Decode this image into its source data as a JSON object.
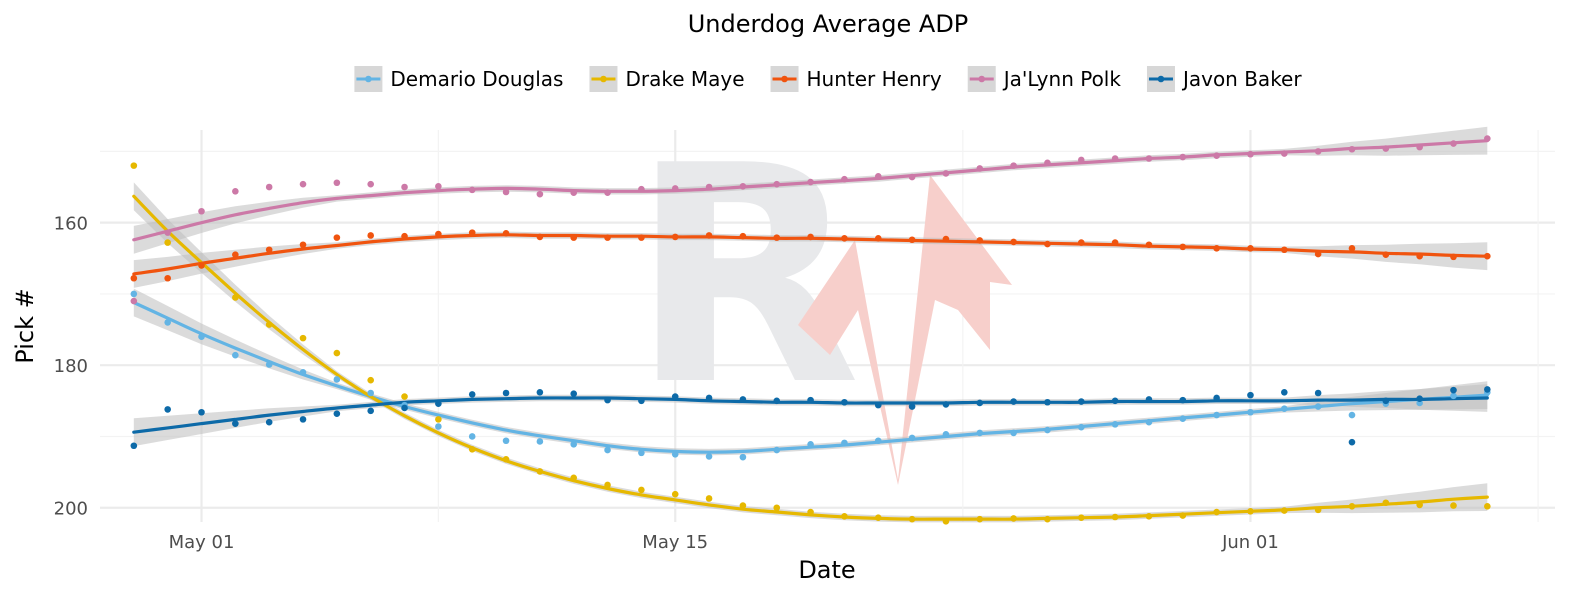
{
  "chart_data": {
    "type": "scatter",
    "title": "Underdog Average ADP",
    "xlabel": "Date",
    "ylabel": "Pick #",
    "x_axis": {
      "type": "date",
      "range": [
        "2024-04-28",
        "2024-06-10"
      ],
      "ticks": [
        {
          "date": "2024-05-01",
          "label": "May 01"
        },
        {
          "date": "2024-05-15",
          "label": "May 15"
        },
        {
          "date": "2024-06-01",
          "label": "Jun 01"
        }
      ]
    },
    "y_axis": {
      "reversed": true,
      "range": [
        147,
        202
      ],
      "ticks": [
        160,
        180,
        200
      ]
    },
    "grid": true,
    "legend_position": "top",
    "smoothing": "loess trend with confidence band",
    "watermark": "RV",
    "colors": {
      "band": "#bdbdbd",
      "watermark_letter": "#e8e9eb",
      "watermark_arrow": "#f7cfcb"
    },
    "dates": [
      "2024-04-29",
      "2024-04-30",
      "2024-05-01",
      "2024-05-02",
      "2024-05-03",
      "2024-05-04",
      "2024-05-05",
      "2024-05-06",
      "2024-05-07",
      "2024-05-08",
      "2024-05-09",
      "2024-05-10",
      "2024-05-11",
      "2024-05-12",
      "2024-05-13",
      "2024-05-14",
      "2024-05-15",
      "2024-05-16",
      "2024-05-17",
      "2024-05-18",
      "2024-05-19",
      "2024-05-20",
      "2024-05-21",
      "2024-05-22",
      "2024-05-23",
      "2024-05-24",
      "2024-05-25",
      "2024-05-26",
      "2024-05-27",
      "2024-05-28",
      "2024-05-29",
      "2024-05-30",
      "2024-05-31",
      "2024-06-01",
      "2024-06-02",
      "2024-06-03",
      "2024-06-04",
      "2024-06-05",
      "2024-06-06",
      "2024-06-07",
      "2024-06-08"
    ],
    "series": [
      {
        "name": "Demario Douglas",
        "color": "#63b4e4",
        "values": [
          170.0,
          174.0,
          176.0,
          178.6,
          179.9,
          181.0,
          182.0,
          183.9,
          185.6,
          188.6,
          190.0,
          190.6,
          190.7,
          191.1,
          191.9,
          192.3,
          192.5,
          192.8,
          192.9,
          191.9,
          191.1,
          190.9,
          190.6,
          190.2,
          189.7,
          189.5,
          189.5,
          189.1,
          188.7,
          188.3,
          188.0,
          187.5,
          187.0,
          186.6,
          186.1,
          185.8,
          187.0,
          185.4,
          185.3,
          184.3,
          183.8
        ],
        "trend": [
          171.2,
          173.4,
          175.6,
          177.6,
          179.5,
          181.3,
          182.9,
          184.4,
          185.8,
          187.0,
          188.1,
          189.1,
          189.9,
          190.6,
          191.3,
          191.8,
          192.1,
          192.2,
          192.1,
          191.8,
          191.5,
          191.2,
          190.8,
          190.4,
          190.0,
          189.6,
          189.3,
          189.0,
          188.6,
          188.2,
          187.8,
          187.4,
          187.0,
          186.6,
          186.2,
          185.8,
          185.4,
          185.1,
          184.8,
          184.5,
          184.2
        ]
      },
      {
        "name": "Drake Maye",
        "color": "#e6b800",
        "values": [
          152.0,
          162.8,
          166.0,
          170.5,
          174.3,
          176.2,
          178.3,
          182.1,
          184.4,
          187.6,
          191.8,
          193.2,
          194.9,
          195.8,
          196.8,
          197.5,
          198.1,
          198.7,
          199.7,
          200.0,
          200.6,
          201.2,
          201.4,
          201.6,
          201.9,
          201.6,
          201.5,
          201.6,
          201.4,
          201.3,
          201.2,
          201.1,
          200.6,
          200.5,
          200.4,
          200.3,
          199.8,
          199.3,
          199.6,
          199.7,
          199.8
        ],
        "trend": [
          156.3,
          161.2,
          165.6,
          169.9,
          174.0,
          177.8,
          181.3,
          184.4,
          187.1,
          189.5,
          191.6,
          193.4,
          194.9,
          196.2,
          197.3,
          198.2,
          198.9,
          199.6,
          200.2,
          200.6,
          201.0,
          201.3,
          201.5,
          201.6,
          201.6,
          201.6,
          201.6,
          201.5,
          201.4,
          201.3,
          201.1,
          200.9,
          200.7,
          200.5,
          200.3,
          200.0,
          199.8,
          199.5,
          199.2,
          198.8,
          198.5
        ]
      },
      {
        "name": "Hunter Henry",
        "color": "#f0540f",
        "values": [
          167.8,
          167.8,
          166.0,
          164.5,
          163.8,
          163.1,
          162.1,
          161.8,
          161.9,
          161.6,
          161.4,
          161.5,
          162.0,
          162.1,
          162.1,
          162.1,
          162.0,
          161.8,
          161.9,
          162.1,
          162.0,
          162.2,
          162.2,
          162.4,
          162.3,
          162.5,
          162.7,
          163.0,
          162.8,
          162.8,
          163.1,
          163.4,
          163.6,
          163.6,
          163.8,
          164.4,
          163.6,
          164.5,
          164.7,
          164.8,
          164.7
        ],
        "trend": [
          167.2,
          166.5,
          165.7,
          165.0,
          164.3,
          163.7,
          163.2,
          162.7,
          162.3,
          162.0,
          161.8,
          161.7,
          161.8,
          161.8,
          161.9,
          161.9,
          162.0,
          162.0,
          162.1,
          162.2,
          162.2,
          162.3,
          162.4,
          162.5,
          162.6,
          162.7,
          162.8,
          162.9,
          163.0,
          163.1,
          163.3,
          163.4,
          163.5,
          163.7,
          163.8,
          164.0,
          164.1,
          164.3,
          164.4,
          164.6,
          164.7
        ]
      },
      {
        "name": "Ja'Lynn Polk",
        "color": "#cc79a7",
        "values": [
          171.0,
          161.4,
          158.4,
          155.6,
          155.0,
          154.6,
          154.4,
          154.6,
          155.0,
          154.9,
          155.4,
          155.7,
          156.0,
          155.8,
          155.8,
          155.3,
          155.2,
          155.0,
          154.9,
          154.6,
          154.3,
          153.9,
          153.5,
          153.6,
          153.1,
          152.4,
          152.0,
          151.6,
          151.2,
          151.0,
          151.0,
          150.8,
          150.6,
          150.4,
          150.3,
          150.0,
          149.7,
          149.6,
          149.4,
          148.9,
          148.2
        ],
        "trend": [
          162.4,
          161.2,
          160.0,
          158.9,
          158.0,
          157.2,
          156.6,
          156.2,
          155.8,
          155.5,
          155.3,
          155.2,
          155.3,
          155.5,
          155.6,
          155.6,
          155.5,
          155.3,
          155.0,
          154.7,
          154.4,
          154.1,
          153.8,
          153.4,
          153.0,
          152.6,
          152.2,
          151.9,
          151.6,
          151.3,
          151.0,
          150.8,
          150.5,
          150.3,
          150.1,
          149.9,
          149.6,
          149.4,
          149.1,
          148.8,
          148.5
        ]
      },
      {
        "name": "Javon Baker",
        "color": "#0d6aa8",
        "values": [
          191.3,
          186.2,
          186.6,
          188.2,
          188.0,
          187.6,
          186.8,
          186.4,
          186.0,
          185.4,
          184.1,
          183.9,
          183.8,
          184.0,
          184.9,
          185.0,
          184.4,
          184.6,
          184.8,
          185.0,
          184.9,
          185.2,
          185.6,
          185.8,
          185.5,
          185.3,
          185.1,
          185.2,
          185.1,
          185.0,
          184.8,
          184.9,
          184.6,
          184.2,
          183.8,
          183.9,
          190.8,
          185.0,
          184.7,
          183.5,
          183.4
        ],
        "trend": [
          189.4,
          188.8,
          188.2,
          187.6,
          187.0,
          186.5,
          186.0,
          185.6,
          185.2,
          185.0,
          184.8,
          184.7,
          184.6,
          184.6,
          184.6,
          184.7,
          184.8,
          185.0,
          185.1,
          185.2,
          185.2,
          185.3,
          185.3,
          185.3,
          185.3,
          185.2,
          185.2,
          185.2,
          185.2,
          185.1,
          185.1,
          185.1,
          185.0,
          185.0,
          185.0,
          184.9,
          184.9,
          184.8,
          184.8,
          184.7,
          184.6
        ]
      }
    ]
  }
}
